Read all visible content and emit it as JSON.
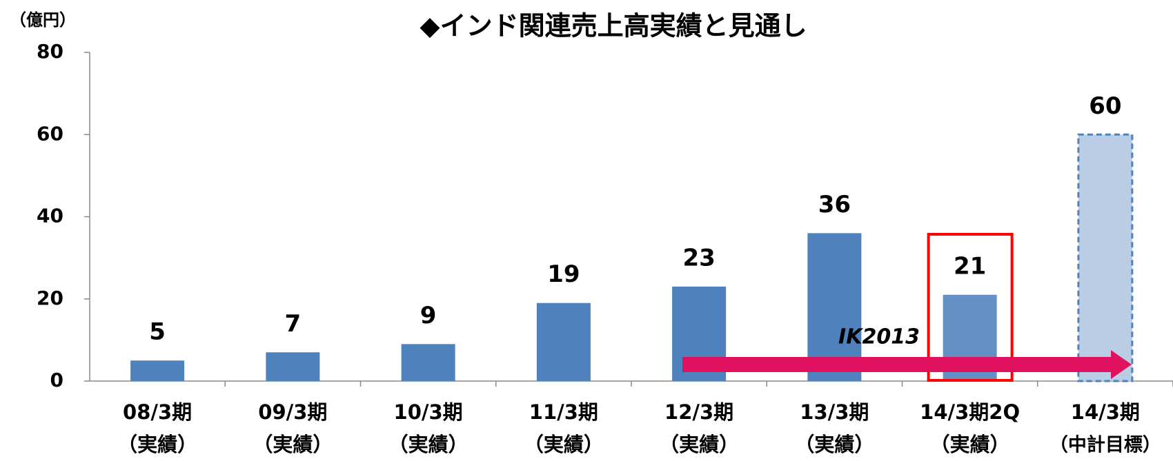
{
  "chart_data": {
    "type": "bar",
    "title": "◆インド関連売上高実績と見通し",
    "y_unit": "（億円）",
    "categories": [
      [
        "08/3期",
        "（実績）"
      ],
      [
        "09/3期",
        "（実績）"
      ],
      [
        "10/3期",
        "（実績）"
      ],
      [
        "11/3期",
        "（実績）"
      ],
      [
        "12/3期",
        "（実績）"
      ],
      [
        "13/3期",
        "（実績）"
      ],
      [
        "14/3期2Q",
        "（実績）"
      ],
      [
        "14/3期",
        "（中計目標）"
      ]
    ],
    "values": [
      5,
      7,
      9,
      19,
      23,
      36,
      21,
      60
    ],
    "colors": [
      "#4f81bd",
      "#4f81bd",
      "#4f81bd",
      "#4f81bd",
      "#4f81bd",
      "#4f81bd",
      "#6590c5",
      "#b9cde5"
    ],
    "label_colors": [
      "#000000",
      "#000000",
      "#000000",
      "#000000",
      "#000000",
      "#000000",
      "#0000ff",
      "#000000"
    ],
    "ylim": [
      0,
      80
    ],
    "yticks": [
      0,
      20,
      40,
      60,
      80
    ],
    "annotation": "IK2013"
  }
}
